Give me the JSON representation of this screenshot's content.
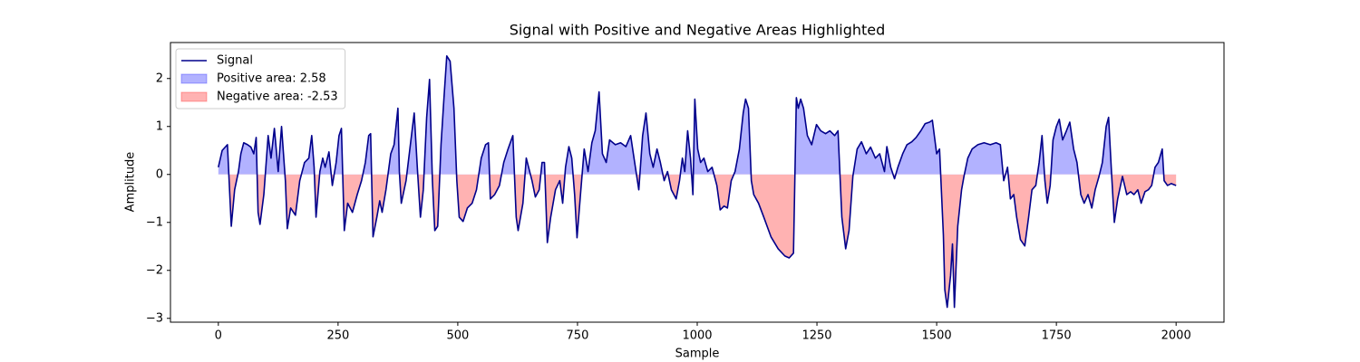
{
  "chart_data": {
    "type": "line",
    "title": "Signal with Positive and Negative Areas Highlighted",
    "xlabel": "Sample",
    "ylabel": "Amplitude",
    "x": [
      0,
      8,
      19,
      27,
      34,
      42,
      47,
      53,
      61,
      68,
      74,
      79,
      83,
      87,
      95,
      104,
      110,
      117,
      125,
      132,
      140,
      144,
      151,
      161,
      170,
      180,
      189,
      195,
      200,
      204,
      212,
      218,
      223,
      231,
      238,
      246,
      252,
      257,
      263,
      270,
      280,
      290,
      299,
      307,
      314,
      318,
      323,
      331,
      337,
      342,
      350,
      360,
      367,
      375,
      378,
      382,
      392,
      401,
      409,
      416,
      422,
      428,
      435,
      441,
      447,
      452,
      458,
      465,
      471,
      477,
      484,
      492,
      498,
      503,
      511,
      520,
      530,
      539,
      549,
      558,
      564,
      568,
      577,
      587,
      596,
      605,
      615,
      622,
      626,
      636,
      643,
      655,
      662,
      670,
      676,
      681,
      687,
      694,
      704,
      713,
      719,
      725,
      732,
      738,
      744,
      749,
      757,
      764,
      772,
      780,
      787,
      795,
      802,
      810,
      817,
      829,
      840,
      851,
      861,
      868,
      878,
      886,
      893,
      901,
      908,
      916,
      923,
      931,
      938,
      946,
      956,
      963,
      969,
      974,
      980,
      986,
      991,
      995,
      1001,
      1007,
      1014,
      1022,
      1031,
      1041,
      1048,
      1056,
      1063,
      1071,
      1079,
      1088,
      1096,
      1101,
      1107,
      1113,
      1118,
      1128,
      1139,
      1154,
      1169,
      1183,
      1192,
      1201,
      1207,
      1211,
      1216,
      1222,
      1230,
      1239,
      1249,
      1258,
      1268,
      1277,
      1287,
      1294,
      1302,
      1310,
      1317,
      1325,
      1334,
      1343,
      1353,
      1362,
      1372,
      1381,
      1391,
      1396,
      1404,
      1412,
      1419,
      1429,
      1438,
      1448,
      1457,
      1467,
      1476,
      1485,
      1491,
      1500,
      1506,
      1514,
      1517,
      1522,
      1529,
      1533,
      1537,
      1544,
      1552,
      1557,
      1565,
      1574,
      1586,
      1599,
      1612,
      1624,
      1633,
      1640,
      1648,
      1654,
      1661,
      1667,
      1675,
      1684,
      1692,
      1699,
      1707,
      1714,
      1720,
      1726,
      1731,
      1737,
      1743,
      1750,
      1756,
      1763,
      1771,
      1778,
      1786,
      1793,
      1801,
      1808,
      1816,
      1824,
      1831,
      1839,
      1846,
      1854,
      1859,
      1865,
      1871,
      1878,
      1888,
      1897,
      1905,
      1912,
      1920,
      1927,
      1935,
      1942,
      1949,
      1956,
      1963,
      1971,
      1975,
      1982,
      1990,
      2000
    ],
    "series": [
      {
        "name": "Signal",
        "color": "#00008b",
        "values": [
          0.15,
          0.5,
          0.62,
          -1.08,
          -0.32,
          0.06,
          0.43,
          0.66,
          0.62,
          0.57,
          0.43,
          0.77,
          -0.79,
          -1.04,
          -0.42,
          0.81,
          0.34,
          0.96,
          0.06,
          1.0,
          -0.13,
          -1.13,
          -0.7,
          -0.85,
          -0.13,
          0.25,
          0.34,
          0.81,
          0.15,
          -0.89,
          0.06,
          0.34,
          0.15,
          0.47,
          -0.23,
          0.25,
          0.81,
          0.96,
          -1.17,
          -0.6,
          -0.79,
          -0.42,
          -0.13,
          0.25,
          0.81,
          0.85,
          -1.3,
          -0.89,
          -0.55,
          -0.79,
          -0.32,
          0.43,
          0.62,
          1.38,
          0.06,
          -0.6,
          -0.13,
          0.62,
          1.28,
          0.06,
          -0.89,
          -0.32,
          1.19,
          1.98,
          -0.13,
          -1.17,
          -1.08,
          0.62,
          1.57,
          2.47,
          2.36,
          1.38,
          -0.13,
          -0.89,
          -0.98,
          -0.7,
          -0.6,
          -0.32,
          0.34,
          0.62,
          0.66,
          -0.51,
          -0.42,
          -0.23,
          0.25,
          0.53,
          0.81,
          -0.89,
          -1.17,
          -0.6,
          0.34,
          -0.13,
          -0.47,
          -0.32,
          0.25,
          0.25,
          -1.42,
          -0.89,
          -0.32,
          -0.13,
          -0.6,
          0.15,
          0.58,
          0.34,
          -0.42,
          -1.32,
          -0.32,
          0.53,
          0.06,
          0.66,
          0.91,
          1.72,
          0.43,
          0.25,
          0.72,
          0.62,
          0.66,
          0.58,
          0.81,
          0.34,
          -0.32,
          0.81,
          1.28,
          0.43,
          0.15,
          0.53,
          0.25,
          -0.13,
          0.06,
          -0.32,
          -0.51,
          -0.13,
          0.34,
          0.06,
          0.91,
          0.34,
          -0.42,
          1.57,
          0.53,
          0.25,
          0.34,
          0.06,
          0.15,
          -0.23,
          -0.74,
          -0.66,
          -0.7,
          -0.13,
          0.06,
          0.53,
          1.28,
          1.57,
          1.38,
          -0.13,
          -0.42,
          -0.6,
          -0.89,
          -1.3,
          -1.55,
          -1.7,
          -1.74,
          -1.64,
          1.6,
          1.38,
          1.57,
          1.38,
          0.81,
          0.62,
          1.04,
          0.91,
          0.85,
          0.91,
          0.81,
          0.91,
          -0.89,
          -1.55,
          -1.17,
          -0.04,
          0.53,
          0.68,
          0.43,
          0.57,
          0.34,
          0.43,
          0.06,
          0.58,
          0.15,
          -0.09,
          0.15,
          0.43,
          0.62,
          0.68,
          0.77,
          0.91,
          1.06,
          1.09,
          1.13,
          0.43,
          0.53,
          -1.26,
          -2.4,
          -2.77,
          -2.11,
          -1.45,
          -2.77,
          -1.08,
          -0.32,
          -0.04,
          0.34,
          0.53,
          0.62,
          0.66,
          0.62,
          0.66,
          0.62,
          -0.13,
          0.15,
          -0.51,
          -0.42,
          -0.89,
          -1.36,
          -1.49,
          -0.89,
          -0.32,
          -0.23,
          0.25,
          0.81,
          -0.13,
          -0.6,
          -0.23,
          0.72,
          1.0,
          1.15,
          0.72,
          0.91,
          1.09,
          0.53,
          0.25,
          -0.42,
          -0.6,
          -0.42,
          -0.7,
          -0.32,
          -0.04,
          0.25,
          1.0,
          1.19,
          0.06,
          -1.0,
          -0.51,
          -0.04,
          -0.42,
          -0.36,
          -0.42,
          -0.32,
          -0.6,
          -0.36,
          -0.32,
          -0.23,
          0.15,
          0.25,
          0.53,
          -0.13,
          -0.23,
          -0.19,
          -0.23
        ]
      }
    ],
    "fills": [
      {
        "name": "Positive area: 2.58",
        "color": "#0000ff"
      },
      {
        "name": "Negative area: -2.53",
        "color": "#ff0000"
      }
    ],
    "xlim": [
      -100,
      2100
    ],
    "ylim": [
      -3.08,
      2.75
    ],
    "xticks": [
      0,
      250,
      500,
      750,
      1000,
      1250,
      1500,
      1750,
      2000
    ],
    "yticks": [
      {
        "value": -3,
        "label": "−3"
      },
      {
        "value": -2,
        "label": "−2"
      },
      {
        "value": -1,
        "label": "−1"
      },
      0,
      1,
      2
    ],
    "legend": "upper left",
    "grid": false
  }
}
